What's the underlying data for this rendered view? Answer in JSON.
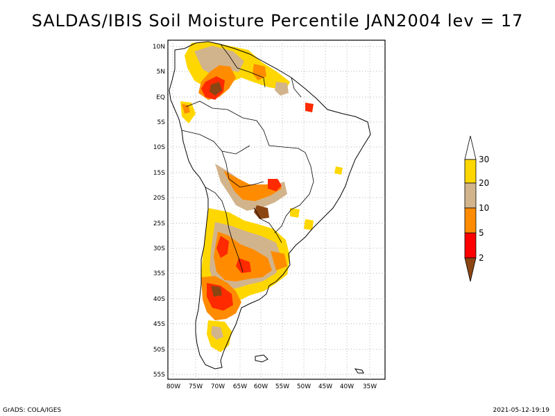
{
  "title": "SALDAS/IBIS Soil Moisture Percentile JAN2004 lev = 17",
  "footer": {
    "left": "GrADS: COLA/IGES",
    "right": "2021-05-12-19:19"
  },
  "axes": {
    "lat_labels": [
      "10N",
      "5N",
      "EQ",
      "5S",
      "10S",
      "15S",
      "20S",
      "25S",
      "30S",
      "35S",
      "40S",
      "45S",
      "50S",
      "55S"
    ],
    "lon_labels": [
      "80W",
      "75W",
      "70W",
      "65W",
      "60W",
      "55W",
      "50W",
      "45W",
      "40W",
      "35W"
    ],
    "lon_range": [
      -81,
      -34
    ],
    "lat_range": [
      -56,
      11
    ],
    "grid": "dotted"
  },
  "colorbar": {
    "levels": [
      "2",
      "5",
      "10",
      "20",
      "30"
    ],
    "colors": {
      "below_2": "#8b4513",
      "2_5": "#ff0000",
      "5_10": "#ff8c00",
      "10_20": "#d2b48c",
      "20_30": "#ffd700",
      "above_30": "#ffffff"
    }
  },
  "map": {
    "region": "South America",
    "hatch_colors": {
      "dark": "#8b4513",
      "red": "#ff2a00",
      "orange": "#ff8c00",
      "tan": "#d2b48c",
      "yellow": "#ffd700"
    }
  }
}
